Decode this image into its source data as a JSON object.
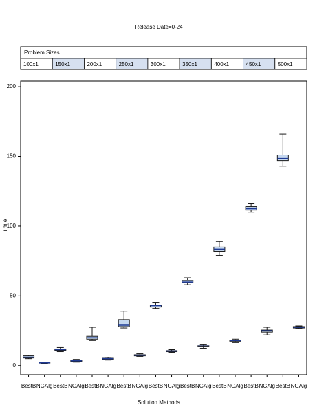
{
  "chart_data": {
    "type": "box",
    "title": "Release Date=0-24",
    "panel": {
      "title": "Problem Sizes",
      "levels": [
        "100x1",
        "150x1",
        "200x1",
        "250x1",
        "300x1",
        "350x1",
        "400x1",
        "450x1",
        "500x1"
      ]
    },
    "x_label": "Solution Methods",
    "y_label": "T i m e",
    "categories": [
      "BestB",
      "NGAlg",
      "BestB",
      "NGAlg",
      "BestB",
      "NGAlg",
      "BestB",
      "NGAlg",
      "BestB",
      "NGAlg",
      "BestB",
      "NGAlg",
      "BestB",
      "NGAlg",
      "BestB",
      "NGAlg",
      "BestB",
      "NGAlg"
    ],
    "values": [
      [
        5,
        5.5,
        6,
        7,
        7.5
      ],
      [
        1.5,
        1.8,
        2,
        2.2,
        2.5
      ],
      [
        10,
        11,
        11.5,
        12,
        13
      ],
      [
        2.5,
        3,
        3.5,
        3.8,
        4.5
      ],
      [
        18,
        19,
        20,
        21,
        27.5
      ],
      [
        4,
        4.5,
        5,
        5.3,
        6
      ],
      [
        27,
        28,
        29,
        33,
        39
      ],
      [
        6.5,
        7,
        7.5,
        7.8,
        8.5
      ],
      [
        41,
        42,
        43,
        43.5,
        45
      ],
      [
        9.5,
        10,
        10.5,
        10.8,
        11.5
      ],
      [
        58,
        59.5,
        60,
        61,
        63
      ],
      [
        12.5,
        13.5,
        14,
        14.3,
        15
      ],
      [
        79,
        82,
        83.5,
        85,
        89
      ],
      [
        16.5,
        17.5,
        18,
        18.3,
        19
      ],
      [
        110,
        111.5,
        112.5,
        114,
        116
      ],
      [
        22,
        24,
        25,
        25.5,
        27.5
      ],
      [
        143,
        147,
        148.5,
        151,
        166
      ],
      [
        26.5,
        27,
        27.5,
        28,
        28.5
      ]
    ],
    "color": "#c6d9f0",
    "ylim": [
      -6.5,
      204
    ],
    "yticks": [
      0,
      50,
      100,
      150,
      200
    ]
  }
}
